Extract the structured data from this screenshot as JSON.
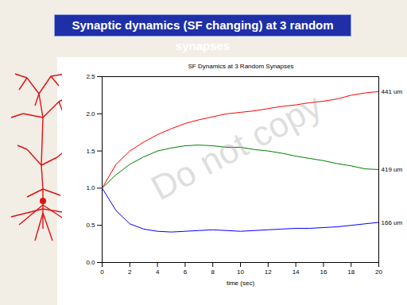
{
  "header": {
    "title": "Synaptic dynamics (SF changing) at 3 random synapses"
  },
  "watermark": "Do not copy",
  "chart_data": {
    "type": "line",
    "title": "SF Dynamics at 3 Random Synapses",
    "x_label": "time (sec)",
    "x": [
      0,
      1,
      2,
      3,
      4,
      5,
      6,
      7,
      8,
      9,
      10,
      11,
      12,
      13,
      14,
      15,
      16,
      17,
      18,
      19,
      20
    ],
    "series": [
      {
        "name": "441 um",
        "color": "#ff0000",
        "values": [
          1.0,
          1.32,
          1.5,
          1.62,
          1.72,
          1.8,
          1.87,
          1.92,
          1.96,
          2.0,
          2.02,
          2.04,
          2.07,
          2.1,
          2.12,
          2.15,
          2.17,
          2.2,
          2.25,
          2.28,
          2.3
        ]
      },
      {
        "name": "419 um",
        "color": "#008000",
        "values": [
          1.0,
          1.18,
          1.32,
          1.42,
          1.5,
          1.54,
          1.57,
          1.58,
          1.57,
          1.55,
          1.55,
          1.52,
          1.5,
          1.47,
          1.43,
          1.4,
          1.37,
          1.33,
          1.3,
          1.26,
          1.25
        ]
      },
      {
        "name": "166 um",
        "color": "#0000ff",
        "values": [
          1.0,
          0.7,
          0.52,
          0.45,
          0.42,
          0.41,
          0.42,
          0.43,
          0.44,
          0.43,
          0.42,
          0.43,
          0.44,
          0.45,
          0.46,
          0.46,
          0.47,
          0.48,
          0.5,
          0.52,
          0.54
        ]
      }
    ],
    "xlim": [
      0,
      20
    ],
    "xticks": [
      0,
      2,
      4,
      6,
      8,
      10,
      12,
      14,
      16,
      18,
      20
    ],
    "ylim": [
      0,
      2.5
    ],
    "yticks": [
      0,
      0.5,
      1,
      1.5,
      2,
      2.5
    ],
    "grid": false
  }
}
